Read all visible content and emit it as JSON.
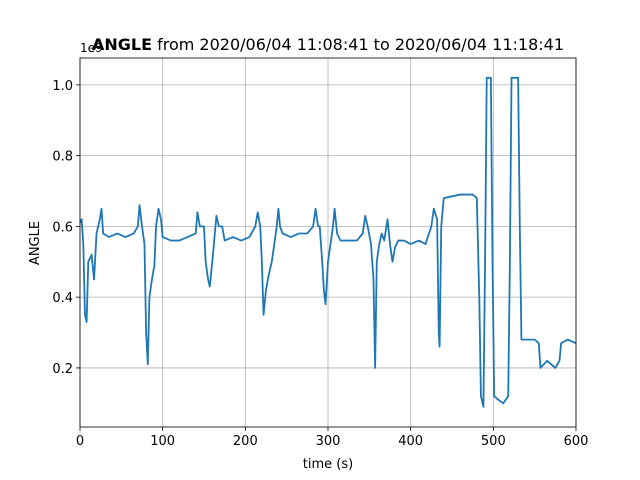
{
  "chart_data": {
    "type": "line",
    "title": {
      "bold": "ANGLE",
      "rest": "from 2020/06/04 11:08:41 to 2020/06/04 11:18:41"
    },
    "offset_text": "1e9",
    "xlabel": "time (s)",
    "ylabel": "ANGLE",
    "xlim": [
      0,
      600
    ],
    "ylim": [
      0.033,
      1.076
    ],
    "xticks": [
      0,
      100,
      200,
      300,
      400,
      500,
      600
    ],
    "yticks": [
      0.2,
      0.4,
      0.6,
      0.8,
      {
        "value": 1,
        "label": "1.0"
      }
    ],
    "grid": true,
    "series": [
      {
        "name": "ANGLE",
        "color": "#1f77b4",
        "x": [
          0,
          2,
          4,
          6,
          8,
          10,
          14,
          17,
          20,
          24,
          26,
          28,
          35,
          45,
          55,
          65,
          70,
          72,
          75,
          78,
          80,
          82,
          84,
          87,
          90,
          92,
          95,
          98,
          100,
          110,
          120,
          130,
          140,
          142,
          145,
          150,
          152,
          155,
          157,
          160,
          162,
          165,
          168,
          172,
          175,
          185,
          195,
          205,
          212,
          215,
          218,
          220,
          222,
          225,
          228,
          232,
          235,
          238,
          240,
          242,
          245,
          255,
          265,
          275,
          282,
          285,
          288,
          290,
          293,
          295,
          297,
          300,
          303,
          306,
          308,
          311,
          315,
          325,
          335,
          342,
          345,
          348,
          352,
          355,
          357,
          359,
          362,
          365,
          368,
          372,
          375,
          378,
          381,
          385,
          392,
          400,
          410,
          418,
          425,
          428,
          432,
          434,
          435,
          437,
          440,
          460,
          475,
          480,
          483,
          485,
          488,
          490,
          492,
          497,
          499,
          501,
          506,
          512,
          518,
          520,
          522,
          530,
          532,
          534,
          540,
          550,
          555,
          557,
          565,
          575,
          580,
          582,
          590,
          600
        ],
        "values": [
          0.61,
          0.62,
          0.55,
          0.35,
          0.33,
          0.5,
          0.52,
          0.45,
          0.58,
          0.62,
          0.65,
          0.58,
          0.57,
          0.58,
          0.57,
          0.58,
          0.6,
          0.66,
          0.6,
          0.55,
          0.3,
          0.21,
          0.4,
          0.45,
          0.49,
          0.6,
          0.65,
          0.62,
          0.57,
          0.56,
          0.56,
          0.57,
          0.58,
          0.64,
          0.6,
          0.6,
          0.5,
          0.45,
          0.43,
          0.5,
          0.55,
          0.63,
          0.6,
          0.6,
          0.56,
          0.57,
          0.56,
          0.57,
          0.6,
          0.64,
          0.6,
          0.5,
          0.35,
          0.42,
          0.46,
          0.5,
          0.55,
          0.6,
          0.65,
          0.6,
          0.58,
          0.57,
          0.58,
          0.58,
          0.6,
          0.65,
          0.6,
          0.6,
          0.5,
          0.42,
          0.38,
          0.5,
          0.55,
          0.6,
          0.65,
          0.58,
          0.56,
          0.56,
          0.56,
          0.58,
          0.63,
          0.6,
          0.55,
          0.45,
          0.2,
          0.5,
          0.55,
          0.58,
          0.56,
          0.62,
          0.55,
          0.5,
          0.54,
          0.56,
          0.56,
          0.55,
          0.56,
          0.55,
          0.6,
          0.65,
          0.62,
          0.3,
          0.26,
          0.6,
          0.68,
          0.69,
          0.69,
          0.68,
          0.4,
          0.12,
          0.09,
          0.5,
          1.02,
          1.02,
          0.5,
          0.12,
          0.11,
          0.1,
          0.12,
          0.5,
          1.02,
          1.02,
          0.6,
          0.28,
          0.28,
          0.28,
          0.27,
          0.2,
          0.22,
          0.2,
          0.22,
          0.27,
          0.28,
          0.27
        ]
      }
    ]
  }
}
